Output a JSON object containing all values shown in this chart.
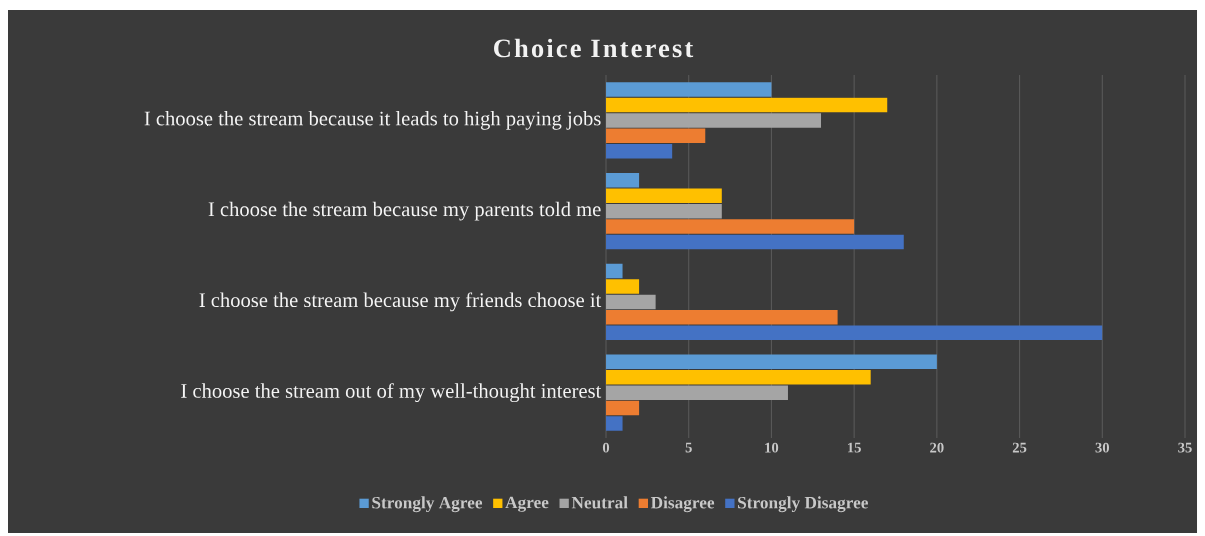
{
  "chart_data": {
    "type": "bar",
    "orientation": "horizontal",
    "title": "Choice Interest",
    "categories": [
      "I choose the stream because it leads to high paying jobs",
      "I choose the stream because my parents told me",
      "I choose the stream because my friends choose it",
      "I choose the stream out of my well-thought interest"
    ],
    "series": [
      {
        "name": "Strongly Agree",
        "color": "#5b9bd5",
        "values": [
          10,
          2,
          1,
          20
        ]
      },
      {
        "name": "Agree",
        "color": "#ffc000",
        "values": [
          17,
          7,
          2,
          16
        ]
      },
      {
        "name": "Neutral",
        "color": "#a5a5a5",
        "values": [
          13,
          7,
          3,
          11
        ]
      },
      {
        "name": "Disagree",
        "color": "#ed7d31",
        "values": [
          6,
          15,
          14,
          2
        ]
      },
      {
        "name": "Strongly Disagree",
        "color": "#4472c4",
        "values": [
          4,
          18,
          30,
          1
        ]
      }
    ],
    "xlim": [
      0,
      35
    ],
    "xticks": [
      0,
      5,
      10,
      15,
      20,
      25,
      30,
      35
    ],
    "grid": "x",
    "legend": "bottom"
  }
}
